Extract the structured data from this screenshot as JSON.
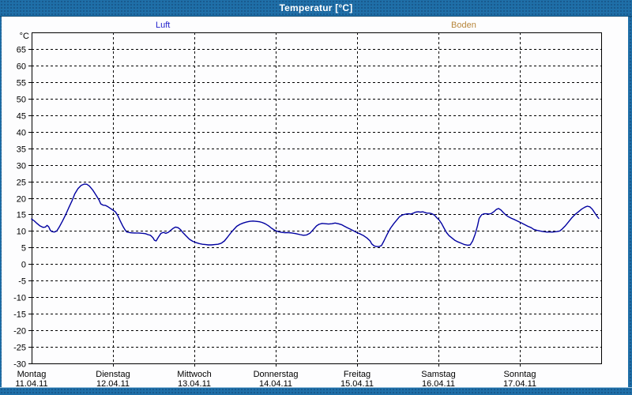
{
  "window": {
    "title": "Temperatur [°C]"
  },
  "colors": {
    "frame_blue": "#1F6FA8",
    "title_text": "#FFFFFF",
    "luft_label": "#2222CC",
    "boden_label": "#B8863B",
    "line_color": "#0000A0",
    "grid_color": "#000000",
    "plot_background": "#FFFFFF"
  },
  "chart_data": {
    "type": "line",
    "title": "Temperatur [°C]",
    "y_unit_label": "°C",
    "ylim": [
      -30,
      70
    ],
    "yticks": [
      65,
      60,
      55,
      50,
      45,
      40,
      35,
      30,
      25,
      20,
      15,
      10,
      5,
      0,
      -5,
      -10,
      -15,
      -20,
      -25,
      -30
    ],
    "grid": "dashed",
    "legend_position": "top",
    "legend_labels": [
      "Luft",
      "Boden"
    ],
    "x_days": [
      {
        "name": "Montag",
        "date": "11.04.11"
      },
      {
        "name": "Dienstag",
        "date": "12.04.11"
      },
      {
        "name": "Mittwoch",
        "date": "13.04.11"
      },
      {
        "name": "Donnerstag",
        "date": "14.04.11"
      },
      {
        "name": "Freitag",
        "date": "15.04.11"
      },
      {
        "name": "Samstag",
        "date": "16.04.11"
      },
      {
        "name": "Sonntag",
        "date": "17.04.11"
      }
    ],
    "x_unit": "days_since_monday_00h",
    "series": [
      {
        "name": "Luft",
        "color": "#0000A0",
        "points": [
          [
            0,
            13.6
          ],
          [
            0.03,
            13.1
          ],
          [
            0.06,
            12.4
          ],
          [
            0.1,
            11.6
          ],
          [
            0.14,
            11.1
          ],
          [
            0.17,
            11.2
          ],
          [
            0.19,
            11.7
          ],
          [
            0.21,
            11.3
          ],
          [
            0.23,
            10.2
          ],
          [
            0.25,
            9.8
          ],
          [
            0.28,
            9.7
          ],
          [
            0.31,
            10
          ],
          [
            0.34,
            11.2
          ],
          [
            0.38,
            13
          ],
          [
            0.42,
            15
          ],
          [
            0.46,
            17.2
          ],
          [
            0.5,
            19.3
          ],
          [
            0.53,
            21.2
          ],
          [
            0.57,
            22.8
          ],
          [
            0.61,
            23.8
          ],
          [
            0.65,
            24.2
          ],
          [
            0.68,
            24.1
          ],
          [
            0.71,
            23.6
          ],
          [
            0.75,
            22.4
          ],
          [
            0.79,
            20.9
          ],
          [
            0.83,
            19.3
          ],
          [
            0.85,
            18.2
          ],
          [
            0.88,
            17.8
          ],
          [
            0.91,
            17.7
          ],
          [
            0.94,
            17.3
          ],
          [
            0.97,
            16.8
          ],
          [
            1,
            16.3
          ],
          [
            1.03,
            15.8
          ],
          [
            1.06,
            14.6
          ],
          [
            1.09,
            13
          ],
          [
            1.12,
            11.5
          ],
          [
            1.15,
            10.3
          ],
          [
            1.17,
            9.7
          ],
          [
            1.21,
            9.5
          ],
          [
            1.26,
            9.4
          ],
          [
            1.31,
            9.4
          ],
          [
            1.36,
            9.3
          ],
          [
            1.4,
            9.2
          ],
          [
            1.43,
            8.9
          ],
          [
            1.46,
            8.7
          ],
          [
            1.49,
            8
          ],
          [
            1.51,
            7.2
          ],
          [
            1.53,
            7
          ],
          [
            1.56,
            8.2
          ],
          [
            1.59,
            9.3
          ],
          [
            1.62,
            9.6
          ],
          [
            1.65,
            9.3
          ],
          [
            1.68,
            9.6
          ],
          [
            1.71,
            10.2
          ],
          [
            1.74,
            10.8
          ],
          [
            1.77,
            11.2
          ],
          [
            1.8,
            11
          ],
          [
            1.83,
            10.4
          ],
          [
            1.86,
            9.5
          ],
          [
            1.9,
            8.5
          ],
          [
            1.94,
            7.5
          ],
          [
            1.98,
            6.9
          ],
          [
            2.02,
            6.5
          ],
          [
            2.06,
            6.2
          ],
          [
            2.1,
            6
          ],
          [
            2.14,
            5.9
          ],
          [
            2.17,
            5.8
          ],
          [
            2.21,
            5.8
          ],
          [
            2.25,
            5.9
          ],
          [
            2.29,
            6
          ],
          [
            2.33,
            6.3
          ],
          [
            2.37,
            7
          ],
          [
            2.41,
            8.2
          ],
          [
            2.45,
            9.5
          ],
          [
            2.49,
            10.6
          ],
          [
            2.52,
            11.4
          ],
          [
            2.56,
            12
          ],
          [
            2.6,
            12.4
          ],
          [
            2.64,
            12.7
          ],
          [
            2.68,
            12.9
          ],
          [
            2.72,
            13
          ],
          [
            2.76,
            12.9
          ],
          [
            2.8,
            12.8
          ],
          [
            2.83,
            12.6
          ],
          [
            2.87,
            12.2
          ],
          [
            2.91,
            11.6
          ],
          [
            2.95,
            10.8
          ],
          [
            2.99,
            10.2
          ],
          [
            3.03,
            9.8
          ],
          [
            3.07,
            9.6
          ],
          [
            3.11,
            9.5
          ],
          [
            3.16,
            9.5
          ],
          [
            3.2,
            9.4
          ],
          [
            3.25,
            9.2
          ],
          [
            3.3,
            8.9
          ],
          [
            3.34,
            8.7
          ],
          [
            3.38,
            8.8
          ],
          [
            3.42,
            9.3
          ],
          [
            3.46,
            10.4
          ],
          [
            3.5,
            11.5
          ],
          [
            3.53,
            12
          ],
          [
            3.57,
            12.3
          ],
          [
            3.61,
            12.2
          ],
          [
            3.65,
            12.1
          ],
          [
            3.69,
            12.2
          ],
          [
            3.73,
            12.4
          ],
          [
            3.77,
            12.2
          ],
          [
            3.81,
            11.9
          ],
          [
            3.84,
            11.5
          ],
          [
            3.88,
            11
          ],
          [
            3.92,
            10.5
          ],
          [
            3.96,
            10
          ],
          [
            4,
            9.5
          ],
          [
            4.04,
            9.1
          ],
          [
            4.08,
            8.6
          ],
          [
            4.12,
            7.9
          ],
          [
            4.16,
            7
          ],
          [
            4.18,
            6.1
          ],
          [
            4.21,
            5.5
          ],
          [
            4.24,
            5.3
          ],
          [
            4.27,
            5.3
          ],
          [
            4.3,
            5.6
          ],
          [
            4.33,
            7
          ],
          [
            4.37,
            9
          ],
          [
            4.41,
            10.8
          ],
          [
            4.45,
            12.2
          ],
          [
            4.49,
            13.4
          ],
          [
            4.52,
            14.3
          ],
          [
            4.56,
            14.9
          ],
          [
            4.6,
            15.1
          ],
          [
            4.63,
            15.2
          ],
          [
            4.66,
            15.1
          ],
          [
            4.69,
            15.4
          ],
          [
            4.72,
            15.7
          ],
          [
            4.75,
            15.8
          ],
          [
            4.78,
            15.7
          ],
          [
            4.81,
            15.8
          ],
          [
            4.83,
            15.6
          ],
          [
            4.86,
            15.4
          ],
          [
            4.89,
            15.4
          ],
          [
            4.92,
            15.2
          ],
          [
            4.95,
            14.8
          ],
          [
            4.98,
            14
          ],
          [
            5.01,
            13.3
          ],
          [
            5.04,
            12.2
          ],
          [
            5.07,
            10.8
          ],
          [
            5.1,
            9.5
          ],
          [
            5.13,
            8.6
          ],
          [
            5.17,
            7.8
          ],
          [
            5.2,
            7.2
          ],
          [
            5.24,
            6.7
          ],
          [
            5.28,
            6.3
          ],
          [
            5.32,
            5.9
          ],
          [
            5.36,
            5.7
          ],
          [
            5.39,
            5.8
          ],
          [
            5.42,
            7
          ],
          [
            5.45,
            9
          ],
          [
            5.48,
            11.5
          ],
          [
            5.5,
            13.8
          ],
          [
            5.53,
            14.9
          ],
          [
            5.56,
            15.2
          ],
          [
            5.59,
            15.2
          ],
          [
            5.62,
            15.1
          ],
          [
            5.65,
            15.3
          ],
          [
            5.68,
            15.8
          ],
          [
            5.71,
            16.5
          ],
          [
            5.74,
            16.8
          ],
          [
            5.77,
            16.3
          ],
          [
            5.8,
            15.5
          ],
          [
            5.83,
            14.8
          ],
          [
            5.86,
            14.3
          ],
          [
            5.9,
            13.8
          ],
          [
            5.94,
            13.4
          ],
          [
            5.98,
            12.9
          ],
          [
            6.02,
            12.4
          ],
          [
            6.06,
            11.9
          ],
          [
            6.1,
            11.4
          ],
          [
            6.14,
            11
          ],
          [
            6.17,
            10.5
          ],
          [
            6.21,
            10.2
          ],
          [
            6.25,
            10
          ],
          [
            6.29,
            9.8
          ],
          [
            6.33,
            9.7
          ],
          [
            6.37,
            9.7
          ],
          [
            6.41,
            9.7
          ],
          [
            6.45,
            9.8
          ],
          [
            6.49,
            10
          ],
          [
            6.52,
            10.6
          ],
          [
            6.56,
            11.6
          ],
          [
            6.6,
            12.8
          ],
          [
            6.64,
            14
          ],
          [
            6.68,
            15
          ],
          [
            6.72,
            15.8
          ],
          [
            6.76,
            16.6
          ],
          [
            6.8,
            17.2
          ],
          [
            6.83,
            17.5
          ],
          [
            6.86,
            17.3
          ],
          [
            6.89,
            16.6
          ],
          [
            6.92,
            15.5
          ],
          [
            6.95,
            14.4
          ],
          [
            6.97,
            13.8
          ]
        ]
      },
      {
        "name": "Boden",
        "color": "#B8863B",
        "points": []
      }
    ]
  }
}
